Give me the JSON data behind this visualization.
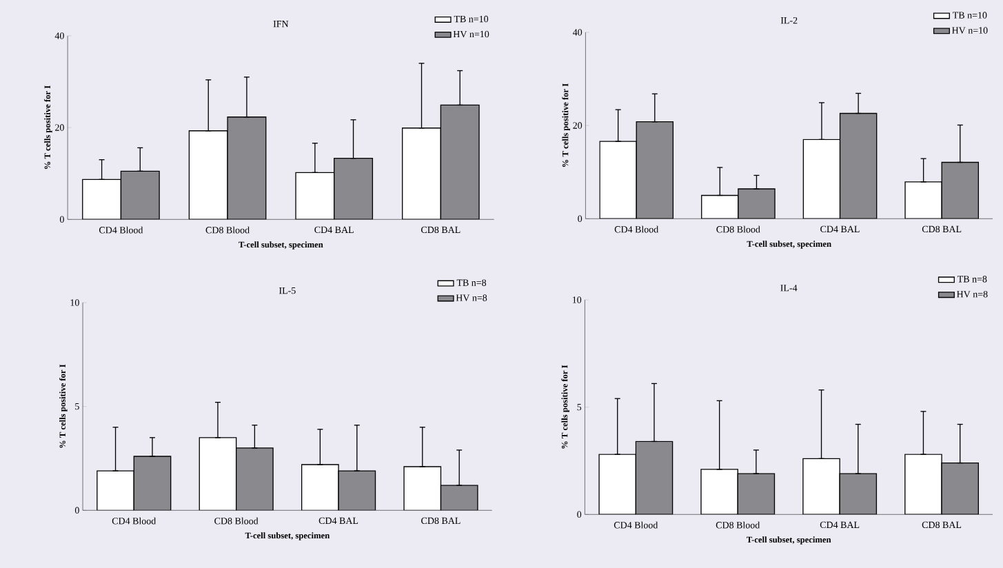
{
  "chart_data": [
    {
      "type": "bar",
      "title": "IFN",
      "xlabel": "T-cell subset, specimen",
      "ylabel": "% T cells positive for I",
      "categories": [
        "CD4 Blood",
        "CD8 Blood",
        "CD4 BAL",
        "CD8 BAL"
      ],
      "ylim": [
        0,
        40
      ],
      "yticks": [
        0,
        20,
        40
      ],
      "legend": "top right",
      "series": [
        {
          "name": "TB n=10",
          "color": "#ffffff",
          "values": [
            8.7,
            19.3,
            10.2,
            19.9
          ],
          "errors": [
            [
              8.7,
              13.0
            ],
            [
              19.3,
              30.4
            ],
            [
              10.2,
              16.6
            ],
            [
              19.9,
              34.0
            ]
          ]
        },
        {
          "name": "HV n=10",
          "color": "#8a8a8e",
          "values": [
            10.5,
            22.3,
            13.3,
            24.9
          ],
          "errors": [
            [
              10.5,
              15.6
            ],
            [
              22.3,
              31.0
            ],
            [
              13.3,
              21.7
            ],
            [
              24.9,
              32.4
            ]
          ]
        }
      ]
    },
    {
      "type": "bar",
      "title": "IL-2",
      "xlabel": "T-cell subset, specimen",
      "ylabel": "% T cells positive for I",
      "categories": [
        "CD4 Blood",
        "CD8 Blood",
        "CD4 BAL",
        "CD8 BAL"
      ],
      "ylim": [
        0,
        40
      ],
      "yticks": [
        0,
        20,
        40
      ],
      "legend": "top right",
      "series": [
        {
          "name": "TB n=10",
          "color": "#ffffff",
          "values": [
            16.6,
            5.0,
            17.0,
            7.9
          ],
          "errors": [
            [
              16.6,
              23.4
            ],
            [
              5.0,
              11.0
            ],
            [
              17.0,
              24.9
            ],
            [
              7.9,
              12.9
            ]
          ]
        },
        {
          "name": "HV n=10",
          "color": "#8a8a8e",
          "values": [
            20.8,
            6.4,
            22.6,
            12.1
          ],
          "errors": [
            [
              20.8,
              26.8
            ],
            [
              6.4,
              9.3
            ],
            [
              22.6,
              26.9
            ],
            [
              12.1,
              20.1
            ]
          ]
        }
      ]
    },
    {
      "type": "bar",
      "title": "IL-5",
      "xlabel": "T-cell subset, specimen",
      "ylabel": "% T cells positive for I",
      "categories": [
        "CD4 Blood",
        "CD8 Blood",
        "CD4 BAL",
        "CD8 BAL"
      ],
      "ylim": [
        0,
        10
      ],
      "yticks": [
        0,
        5,
        10
      ],
      "legend": "top right",
      "series": [
        {
          "name": "TB n=8",
          "color": "#ffffff",
          "values": [
            1.9,
            3.5,
            2.2,
            2.1
          ],
          "errors": [
            [
              1.9,
              4.0
            ],
            [
              3.5,
              5.2
            ],
            [
              2.2,
              3.9
            ],
            [
              2.1,
              4.0
            ]
          ]
        },
        {
          "name": "HV n=8",
          "color": "#8a8a8e",
          "values": [
            2.6,
            3.0,
            1.9,
            1.2
          ],
          "errors": [
            [
              2.6,
              3.5
            ],
            [
              3.0,
              4.1
            ],
            [
              1.9,
              4.1
            ],
            [
              1.2,
              2.9
            ]
          ]
        }
      ]
    },
    {
      "type": "bar",
      "title": "IL-4",
      "xlabel": "T-cell subset, specimen",
      "ylabel": "% T cells positive for I",
      "categories": [
        "CD4 Blood",
        "CD8 Blood",
        "CD4 BAL",
        "CD8 BAL"
      ],
      "ylim": [
        0,
        10
      ],
      "yticks": [
        0,
        5,
        10
      ],
      "legend": "top right",
      "series": [
        {
          "name": "TB n=8",
          "color": "#ffffff",
          "values": [
            2.8,
            2.1,
            2.6,
            2.8
          ],
          "errors": [
            [
              2.8,
              5.4
            ],
            [
              2.1,
              5.3
            ],
            [
              2.6,
              5.8
            ],
            [
              2.8,
              4.8
            ]
          ]
        },
        {
          "name": "HV n=8",
          "color": "#8a8a8e",
          "values": [
            3.4,
            1.9,
            1.9,
            2.4
          ],
          "errors": [
            [
              3.4,
              6.1
            ],
            [
              1.9,
              3.0
            ],
            [
              1.9,
              4.2
            ],
            [
              2.4,
              4.2
            ]
          ]
        }
      ]
    }
  ]
}
